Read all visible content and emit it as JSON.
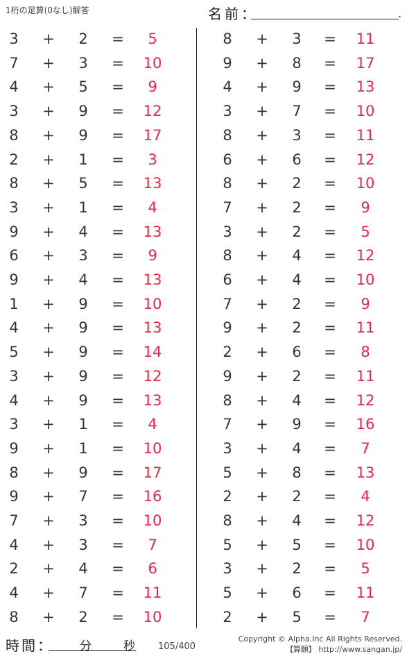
{
  "header": {
    "title": "1桁の足算(0なし)解答",
    "name_label": "名前：",
    "name_end": "."
  },
  "footer": {
    "time_label": "時間：",
    "minutes_label": "分",
    "seconds_label": "秒",
    "page": "105/400",
    "copyright": "Copyright © Alpha.Inc All Rights Reserved.",
    "site": "【算願】 http://www.sangan.jp/"
  },
  "symbols": {
    "plus": "+",
    "equals": "="
  },
  "colors": {
    "answer": "#e8264a",
    "text": "#333333"
  },
  "problems": {
    "left": [
      [
        3,
        2,
        5
      ],
      [
        7,
        3,
        10
      ],
      [
        4,
        5,
        9
      ],
      [
        3,
        9,
        12
      ],
      [
        8,
        9,
        17
      ],
      [
        2,
        1,
        3
      ],
      [
        8,
        5,
        13
      ],
      [
        3,
        1,
        4
      ],
      [
        9,
        4,
        13
      ],
      [
        6,
        3,
        9
      ],
      [
        9,
        4,
        13
      ],
      [
        1,
        9,
        10
      ],
      [
        4,
        9,
        13
      ],
      [
        5,
        9,
        14
      ],
      [
        3,
        9,
        12
      ],
      [
        4,
        9,
        13
      ],
      [
        3,
        1,
        4
      ],
      [
        9,
        1,
        10
      ],
      [
        8,
        9,
        17
      ],
      [
        9,
        7,
        16
      ],
      [
        7,
        3,
        10
      ],
      [
        4,
        3,
        7
      ],
      [
        2,
        4,
        6
      ],
      [
        4,
        7,
        11
      ],
      [
        8,
        2,
        10
      ]
    ],
    "right": [
      [
        8,
        3,
        11
      ],
      [
        9,
        8,
        17
      ],
      [
        4,
        9,
        13
      ],
      [
        3,
        7,
        10
      ],
      [
        8,
        3,
        11
      ],
      [
        6,
        6,
        12
      ],
      [
        8,
        2,
        10
      ],
      [
        7,
        2,
        9
      ],
      [
        3,
        2,
        5
      ],
      [
        8,
        4,
        12
      ],
      [
        6,
        4,
        10
      ],
      [
        7,
        2,
        9
      ],
      [
        9,
        2,
        11
      ],
      [
        2,
        6,
        8
      ],
      [
        9,
        2,
        11
      ],
      [
        8,
        4,
        12
      ],
      [
        7,
        9,
        16
      ],
      [
        3,
        4,
        7
      ],
      [
        5,
        8,
        13
      ],
      [
        2,
        2,
        4
      ],
      [
        8,
        4,
        12
      ],
      [
        5,
        5,
        10
      ],
      [
        3,
        2,
        5
      ],
      [
        5,
        6,
        11
      ],
      [
        2,
        5,
        7
      ]
    ]
  }
}
